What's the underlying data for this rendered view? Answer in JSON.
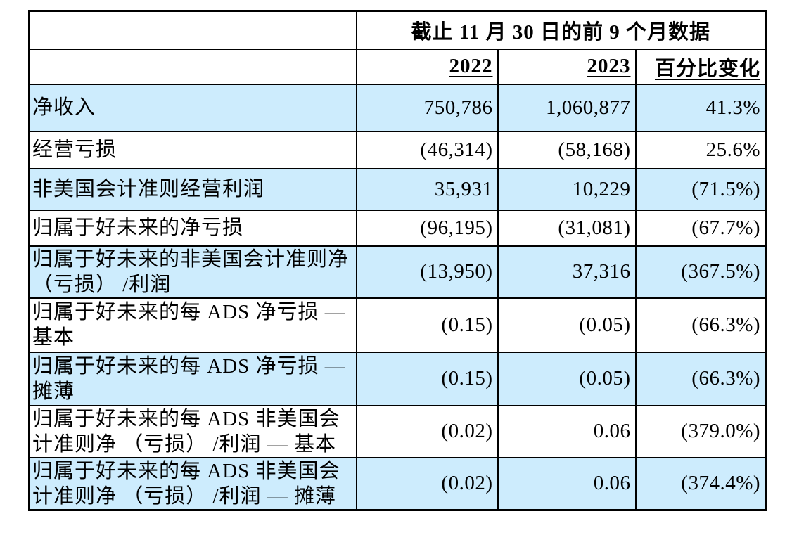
{
  "table": {
    "period_header": "截止 11 月 30 日的前 9 个月数据",
    "column_headers": {
      "y2022": "2022",
      "y2023": "2023",
      "pct_change": "百分比变化"
    },
    "rows": [
      {
        "label": "净收入",
        "y2022": "750,786",
        "y2023": "1,060,877",
        "pct_change": "41.3%"
      },
      {
        "label": "经营亏损",
        "y2022": "(46,314)",
        "y2023": "(58,168)",
        "pct_change": "25.6%"
      },
      {
        "label": "非美国会计准则经营利润",
        "y2022": "35,931",
        "y2023": "10,229",
        "pct_change": "(71.5%)"
      },
      {
        "label": "归属于好未来的净亏损",
        "y2022": "(96,195)",
        "y2023": "(31,081)",
        "pct_change": "(67.7%)"
      },
      {
        "label": "归属于好未来的非美国会计准则净 （亏损） /利润",
        "y2022": "(13,950)",
        "y2023": "37,316",
        "pct_change": "(367.5%)"
      },
      {
        "label": "归属于好未来的每 ADS 净亏损 — 基本",
        "y2022": "(0.15)",
        "y2023": "(0.05)",
        "pct_change": "(66.3%)"
      },
      {
        "label": "归属于好未来的每 ADS 净亏损 — 摊薄",
        "y2022": "(0.15)",
        "y2023": "(0.05)",
        "pct_change": "(66.3%)"
      },
      {
        "label": "归属于好未来的每 ADS 非美国会计准则净 （亏损） /利润 — 基本",
        "y2022": "(0.02)",
        "y2023": "0.06",
        "pct_change": "(379.0%)"
      },
      {
        "label": "归属于好未来的每 ADS 非美国会计准则净 （亏损） /利润 — 摊薄",
        "y2022": "(0.02)",
        "y2023": "0.06",
        "pct_change": "(374.4%)"
      }
    ],
    "colors": {
      "shaded_row_bg": "#cdecfd",
      "border": "#000000"
    }
  }
}
